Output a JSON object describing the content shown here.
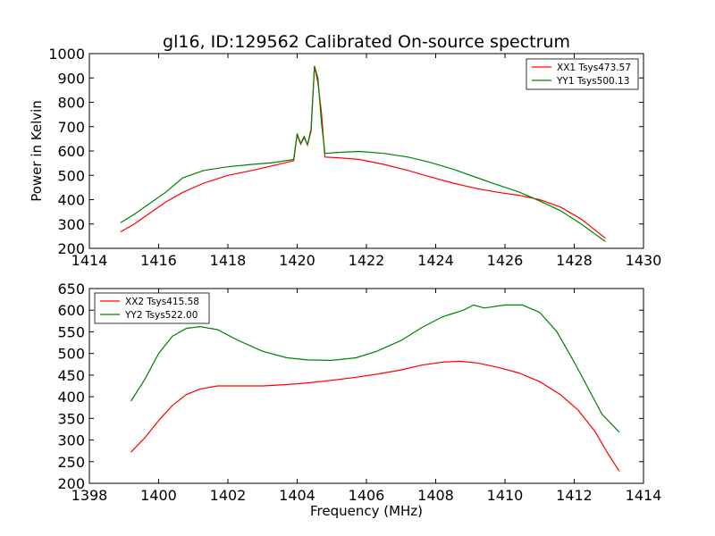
{
  "figure_title": "gl16, ID:129562 Calibrated On-source spectrum",
  "chart_data": [
    {
      "type": "line",
      "title": "gl16, ID:129562 Calibrated On-source spectrum",
      "xlabel": "",
      "ylabel": "Power in Kelvin",
      "xlim": [
        1414,
        1430
      ],
      "ylim": [
        200,
        1000
      ],
      "xticks": [
        1414,
        1416,
        1418,
        1420,
        1422,
        1424,
        1426,
        1428,
        1430
      ],
      "yticks": [
        200,
        300,
        400,
        500,
        600,
        700,
        800,
        900,
        1000
      ],
      "legend_position": "top-right",
      "series": [
        {
          "name": "XX1 Tsys473.57",
          "color": "#ff0000",
          "points": [
            [
              1414.9,
              268
            ],
            [
              1415.3,
              300
            ],
            [
              1415.7,
              340
            ],
            [
              1416.2,
              390
            ],
            [
              1416.7,
              430
            ],
            [
              1417.3,
              468
            ],
            [
              1418.0,
              500
            ],
            [
              1418.7,
              520
            ],
            [
              1419.3,
              540
            ],
            [
              1419.9,
              560
            ],
            [
              1420.0,
              668
            ],
            [
              1420.1,
              628
            ],
            [
              1420.2,
              655
            ],
            [
              1420.3,
              625
            ],
            [
              1420.4,
              680
            ],
            [
              1420.5,
              950
            ],
            [
              1420.6,
              880
            ],
            [
              1420.7,
              760
            ],
            [
              1420.8,
              575
            ],
            [
              1421.2,
              572
            ],
            [
              1421.8,
              565
            ],
            [
              1422.5,
              545
            ],
            [
              1423.2,
              520
            ],
            [
              1423.8,
              495
            ],
            [
              1424.5,
              468
            ],
            [
              1425.2,
              445
            ],
            [
              1425.8,
              430
            ],
            [
              1426.4,
              418
            ],
            [
              1427.0,
              400
            ],
            [
              1427.6,
              370
            ],
            [
              1428.2,
              320
            ],
            [
              1428.9,
              242
            ]
          ]
        },
        {
          "name": "YY1 Tsys500.13",
          "color": "#008000",
          "points": [
            [
              1414.9,
              305
            ],
            [
              1415.3,
              340
            ],
            [
              1415.7,
              380
            ],
            [
              1416.2,
              430
            ],
            [
              1416.7,
              490
            ],
            [
              1417.3,
              520
            ],
            [
              1418.0,
              535
            ],
            [
              1418.7,
              545
            ],
            [
              1419.3,
              552
            ],
            [
              1419.9,
              565
            ],
            [
              1420.0,
              672
            ],
            [
              1420.1,
              630
            ],
            [
              1420.2,
              660
            ],
            [
              1420.3,
              625
            ],
            [
              1420.4,
              690
            ],
            [
              1420.5,
              948
            ],
            [
              1420.6,
              900
            ],
            [
              1420.7,
              720
            ],
            [
              1420.8,
              590
            ],
            [
              1421.2,
              594
            ],
            [
              1421.8,
              598
            ],
            [
              1422.5,
              590
            ],
            [
              1423.2,
              575
            ],
            [
              1423.8,
              555
            ],
            [
              1424.5,
              525
            ],
            [
              1425.2,
              490
            ],
            [
              1425.8,
              460
            ],
            [
              1426.4,
              432
            ],
            [
              1427.0,
              395
            ],
            [
              1427.6,
              355
            ],
            [
              1428.2,
              300
            ],
            [
              1428.9,
              228
            ]
          ]
        }
      ]
    },
    {
      "type": "line",
      "title": "",
      "xlabel": "Frequency (MHz)",
      "ylabel": "",
      "xlim": [
        1398,
        1414
      ],
      "ylim": [
        200,
        650
      ],
      "xticks": [
        1398,
        1400,
        1402,
        1404,
        1406,
        1408,
        1410,
        1412,
        1414
      ],
      "yticks": [
        200,
        250,
        300,
        350,
        400,
        450,
        500,
        550,
        600,
        650
      ],
      "legend_position": "top-left",
      "series": [
        {
          "name": "XX2 Tsys415.58",
          "color": "#ff0000",
          "points": [
            [
              1399.2,
              272
            ],
            [
              1399.6,
              305
            ],
            [
              1400.0,
              345
            ],
            [
              1400.4,
              380
            ],
            [
              1400.8,
              405
            ],
            [
              1401.2,
              418
            ],
            [
              1401.7,
              425
            ],
            [
              1402.3,
              425
            ],
            [
              1403.0,
              425
            ],
            [
              1403.7,
              428
            ],
            [
              1404.3,
              432
            ],
            [
              1405.0,
              438
            ],
            [
              1405.7,
              445
            ],
            [
              1406.3,
              452
            ],
            [
              1407.0,
              462
            ],
            [
              1407.6,
              473
            ],
            [
              1408.2,
              480
            ],
            [
              1408.7,
              482
            ],
            [
              1409.2,
              478
            ],
            [
              1409.8,
              468
            ],
            [
              1410.4,
              455
            ],
            [
              1411.0,
              435
            ],
            [
              1411.6,
              405
            ],
            [
              1412.1,
              370
            ],
            [
              1412.6,
              320
            ],
            [
              1413.0,
              265
            ],
            [
              1413.3,
              228
            ]
          ]
        },
        {
          "name": "YY2 Tsys522.00",
          "color": "#008000",
          "points": [
            [
              1399.2,
              390
            ],
            [
              1399.6,
              440
            ],
            [
              1400.0,
              500
            ],
            [
              1400.4,
              540
            ],
            [
              1400.8,
              558
            ],
            [
              1401.2,
              562
            ],
            [
              1401.7,
              555
            ],
            [
              1402.3,
              530
            ],
            [
              1403.0,
              505
            ],
            [
              1403.7,
              490
            ],
            [
              1404.3,
              485
            ],
            [
              1405.0,
              484
            ],
            [
              1405.7,
              490
            ],
            [
              1406.3,
              505
            ],
            [
              1407.0,
              530
            ],
            [
              1407.6,
              560
            ],
            [
              1408.2,
              585
            ],
            [
              1408.8,
              600
            ],
            [
              1409.1,
              612
            ],
            [
              1409.4,
              605
            ],
            [
              1410.0,
              612
            ],
            [
              1410.5,
              612
            ],
            [
              1411.0,
              595
            ],
            [
              1411.5,
              550
            ],
            [
              1412.0,
              480
            ],
            [
              1412.4,
              420
            ],
            [
              1412.8,
              360
            ],
            [
              1413.3,
              318
            ]
          ]
        }
      ]
    }
  ]
}
